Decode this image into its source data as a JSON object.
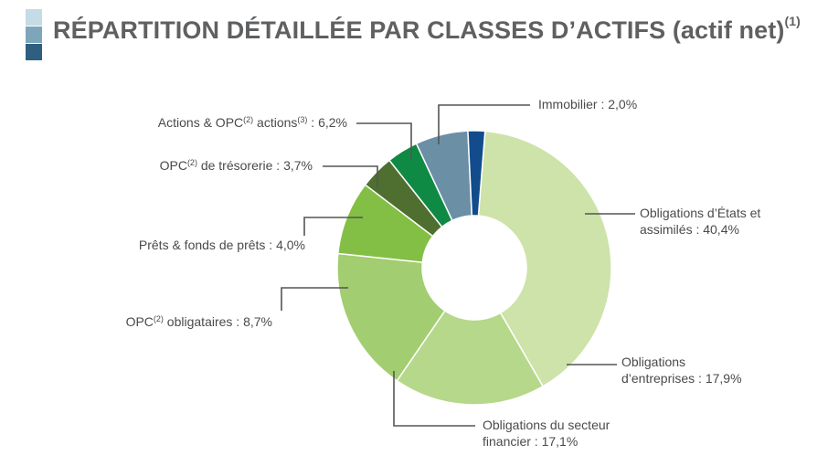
{
  "header": {
    "title": "RÉPARTITION DÉTAILLÉE PAR CLASSES D’ACTIFS (actif net)",
    "title_note": "(1)",
    "mark_colors": [
      "#c5dbe5",
      "#7ea6ba",
      "#2f5e80"
    ]
  },
  "chart_data": {
    "type": "pie",
    "donut": true,
    "legend": "none",
    "slices": [
      {
        "label_lines": [
          "Obligations d’États et",
          "assimilés : 40,4%"
        ],
        "value": 40.4,
        "color": "#cde3a9"
      },
      {
        "label_lines": [
          "Obligations",
          "d’entreprises : 17,9%"
        ],
        "value": 17.9,
        "color": "#b6d88a"
      },
      {
        "label_lines": [
          "Obligations du secteur",
          "financier : 17,1%"
        ],
        "value": 17.1,
        "color": "#a2cd70"
      },
      {
        "label_lines": [
          "OPC(2) obligataires : 8,7%"
        ],
        "value": 8.7,
        "color": "#83bf45"
      },
      {
        "label_lines": [
          "Prêts & fonds de prêts : 4,0%"
        ],
        "value": 4.0,
        "color": "#4e6f2f"
      },
      {
        "label_lines": [
          "OPC(2) de trésorerie : 3,7%"
        ],
        "value": 3.7,
        "color": "#0f8a44"
      },
      {
        "label_lines": [
          "Actions & OPC(2) actions(3) : 6,2%"
        ],
        "value": 6.2,
        "color": "#6b8fa5"
      },
      {
        "label_lines": [
          "Immobilier : 2,0%"
        ],
        "value": 2.0,
        "color": "#124c8d"
      }
    ]
  }
}
